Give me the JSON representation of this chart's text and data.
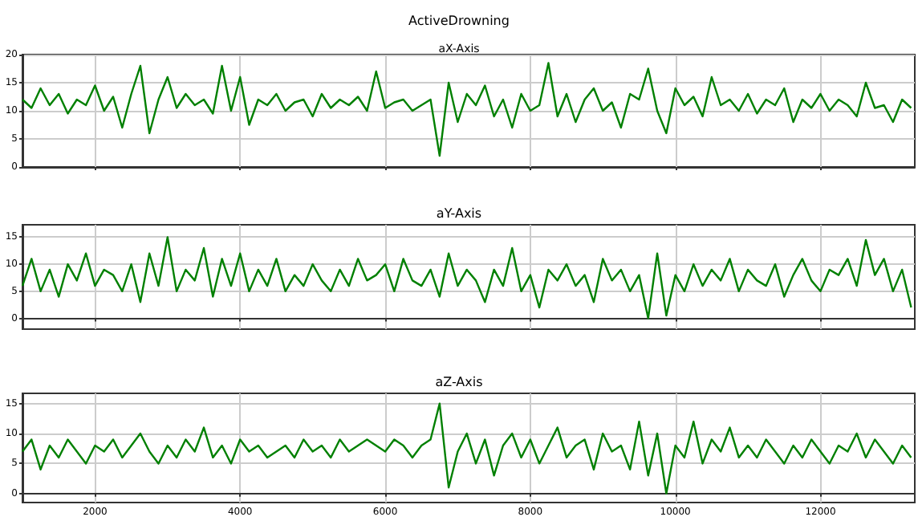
{
  "chart_data": [
    {
      "type": "line",
      "title": "ActiveDrowning",
      "subtitle": "aX-Axis",
      "color": "#008000",
      "grid": true,
      "tick_labels": "y",
      "x": [
        1000,
        1125,
        1250,
        1375,
        1500,
        1625,
        1750,
        1875,
        2000,
        2125,
        2250,
        2375,
        2500,
        2625,
        2750,
        2875,
        3000,
        3125,
        3250,
        3375,
        3500,
        3625,
        3750,
        3875,
        4000,
        4125,
        4250,
        4375,
        4500,
        4625,
        4750,
        4875,
        5000,
        5125,
        5250,
        5375,
        5500,
        5625,
        5750,
        5875,
        6000,
        6125,
        6250,
        6375,
        6500,
        6625,
        6750,
        6875,
        7000,
        7125,
        7250,
        7375,
        7500,
        7625,
        7750,
        7875,
        8000,
        8125,
        8250,
        8375,
        8500,
        8625,
        8750,
        8875,
        9000,
        9125,
        9250,
        9375,
        9500,
        9625,
        9750,
        9875,
        10000,
        10125,
        10250,
        10375,
        10500,
        10625,
        10750,
        10875,
        11000,
        11125,
        11250,
        11375,
        11500,
        11625,
        11750,
        11875,
        12000,
        12125,
        12250,
        12375,
        12500,
        12625,
        12750,
        12875,
        13000,
        13125,
        13250
      ],
      "values": [
        12,
        10.5,
        14,
        11,
        13,
        9.5,
        12,
        11,
        14.5,
        10,
        12.5,
        7,
        13,
        18,
        6,
        12,
        16,
        10.5,
        13,
        11,
        12,
        9.5,
        18,
        10,
        16,
        7.5,
        12,
        11,
        13,
        10,
        11.5,
        12,
        9,
        13,
        10.5,
        12,
        11,
        12.5,
        10,
        17,
        10.5,
        11.5,
        12,
        10,
        11,
        12,
        2,
        15,
        8,
        13,
        11,
        14.5,
        9,
        12,
        7,
        13,
        10,
        11,
        18.5,
        9,
        13,
        8,
        12,
        14,
        10,
        11.5,
        7,
        13,
        12,
        17.5,
        10,
        6,
        14,
        11,
        12.5,
        9,
        16,
        11,
        12,
        10,
        13,
        9.5,
        12,
        11,
        14,
        8,
        12,
        10.5,
        13,
        10,
        12,
        11,
        9,
        15,
        10.5,
        11,
        8,
        12,
        10.5
      ],
      "xlim": [
        1000,
        13300
      ],
      "xticks": [
        2000,
        4000,
        6000,
        8000,
        10000,
        12000
      ],
      "ylim": [
        0,
        20
      ],
      "yticks": [
        0,
        5,
        10,
        15,
        20
      ]
    },
    {
      "type": "line",
      "title": "aY-Axis",
      "color": "#008000",
      "grid": true,
      "tick_labels": "y",
      "x": [
        1000,
        1125,
        1250,
        1375,
        1500,
        1625,
        1750,
        1875,
        2000,
        2125,
        2250,
        2375,
        2500,
        2625,
        2750,
        2875,
        3000,
        3125,
        3250,
        3375,
        3500,
        3625,
        3750,
        3875,
        4000,
        4125,
        4250,
        4375,
        4500,
        4625,
        4750,
        4875,
        5000,
        5125,
        5250,
        5375,
        5500,
        5625,
        5750,
        5875,
        6000,
        6125,
        6250,
        6375,
        6500,
        6625,
        6750,
        6875,
        7000,
        7125,
        7250,
        7375,
        7500,
        7625,
        7750,
        7875,
        8000,
        8125,
        8250,
        8375,
        8500,
        8625,
        8750,
        8875,
        9000,
        9125,
        9250,
        9375,
        9500,
        9625,
        9750,
        9875,
        10000,
        10125,
        10250,
        10375,
        10500,
        10625,
        10750,
        10875,
        11000,
        11125,
        11250,
        11375,
        11500,
        11625,
        11750,
        11875,
        12000,
        12125,
        12250,
        12375,
        12500,
        12625,
        12750,
        12875,
        13000,
        13125,
        13250
      ],
      "values": [
        6,
        11,
        5,
        9,
        4,
        10,
        7,
        12,
        6,
        9,
        8,
        5,
        10,
        3,
        12,
        6,
        15,
        5,
        9,
        7,
        13,
        4,
        11,
        6,
        12,
        5,
        9,
        6,
        11,
        5,
        8,
        6,
        10,
        7,
        5,
        9,
        6,
        11,
        7,
        8,
        10,
        5,
        11,
        7,
        6,
        9,
        4,
        12,
        6,
        9,
        7,
        3,
        9,
        6,
        13,
        5,
        8,
        2,
        9,
        7,
        10,
        6,
        8,
        3,
        11,
        7,
        9,
        5,
        8,
        0,
        12,
        0.5,
        8,
        5,
        10,
        6,
        9,
        7,
        11,
        5,
        9,
        7,
        6,
        10,
        4,
        8,
        11,
        7,
        5,
        9,
        8,
        11,
        6,
        14.5,
        8,
        11,
        5,
        9,
        2
      ],
      "xlim": [
        1000,
        13300
      ],
      "xticks": [
        2000,
        4000,
        6000,
        8000,
        10000,
        12000
      ],
      "ylim": [
        -2,
        17.3
      ],
      "yticks": [
        0,
        5,
        10,
        15
      ]
    },
    {
      "type": "line",
      "title": "aZ-Axis",
      "color": "#008000",
      "grid": true,
      "x": [
        1000,
        1125,
        1250,
        1375,
        1500,
        1625,
        1750,
        1875,
        2000,
        2125,
        2250,
        2375,
        2500,
        2625,
        2750,
        2875,
        3000,
        3125,
        3250,
        3375,
        3500,
        3625,
        3750,
        3875,
        4000,
        4125,
        4250,
        4375,
        4500,
        4625,
        4750,
        4875,
        5000,
        5125,
        5250,
        5375,
        5500,
        5625,
        5750,
        5875,
        6000,
        6125,
        6250,
        6375,
        6500,
        6625,
        6750,
        6875,
        7000,
        7125,
        7250,
        7375,
        7500,
        7625,
        7750,
        7875,
        8000,
        8125,
        8250,
        8375,
        8500,
        8625,
        8750,
        8875,
        9000,
        9125,
        9250,
        9375,
        9500,
        9625,
        9750,
        9875,
        10000,
        10125,
        10250,
        10375,
        10500,
        10625,
        10750,
        10875,
        11000,
        11125,
        11250,
        11375,
        11500,
        11625,
        11750,
        11875,
        12000,
        12125,
        12250,
        12375,
        12500,
        12625,
        12750,
        12875,
        13000,
        13125,
        13250
      ],
      "values": [
        7,
        9,
        4,
        8,
        6,
        9,
        7,
        5,
        8,
        7,
        9,
        6,
        8,
        10,
        7,
        5,
        8,
        6,
        9,
        7,
        11,
        6,
        8,
        5,
        9,
        7,
        8,
        6,
        7,
        8,
        6,
        9,
        7,
        8,
        6,
        9,
        7,
        8,
        9,
        8,
        7,
        9,
        8,
        6,
        8,
        9,
        15,
        1,
        7,
        10,
        5,
        9,
        3,
        8,
        10,
        6,
        9,
        5,
        8,
        11,
        6,
        8,
        9,
        4,
        10,
        7,
        8,
        4,
        12,
        3,
        10,
        0,
        8,
        6,
        12,
        5,
        9,
        7,
        11,
        6,
        8,
        6,
        9,
        7,
        5,
        8,
        6,
        9,
        7,
        5,
        8,
        7,
        10,
        6,
        9,
        7,
        5,
        8,
        6
      ],
      "xlim": [
        1000,
        13300
      ],
      "xticks": [
        2000,
        4000,
        6000,
        8000,
        10000,
        12000
      ],
      "ylim": [
        -1.5,
        16.7
      ],
      "yticks": [
        0,
        5,
        10,
        15
      ]
    }
  ]
}
